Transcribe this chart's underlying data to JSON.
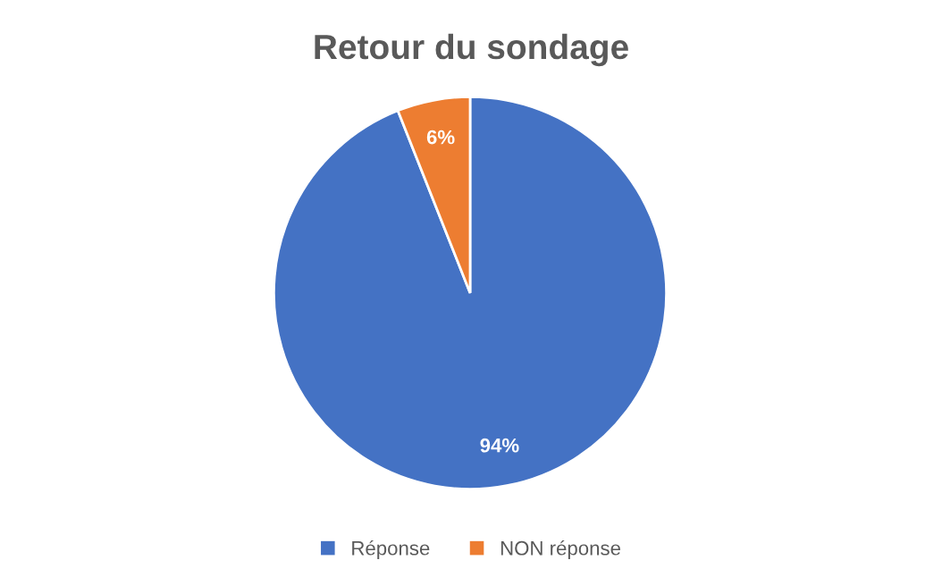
{
  "chart_data": {
    "type": "pie",
    "title": "Retour du sondage",
    "categories": [
      "Réponse",
      "NON réponse"
    ],
    "values": [
      94,
      6
    ],
    "colors": [
      "#4472c4",
      "#ed7d31"
    ],
    "value_labels": [
      "94%",
      "6%"
    ],
    "legend": "bottom"
  }
}
